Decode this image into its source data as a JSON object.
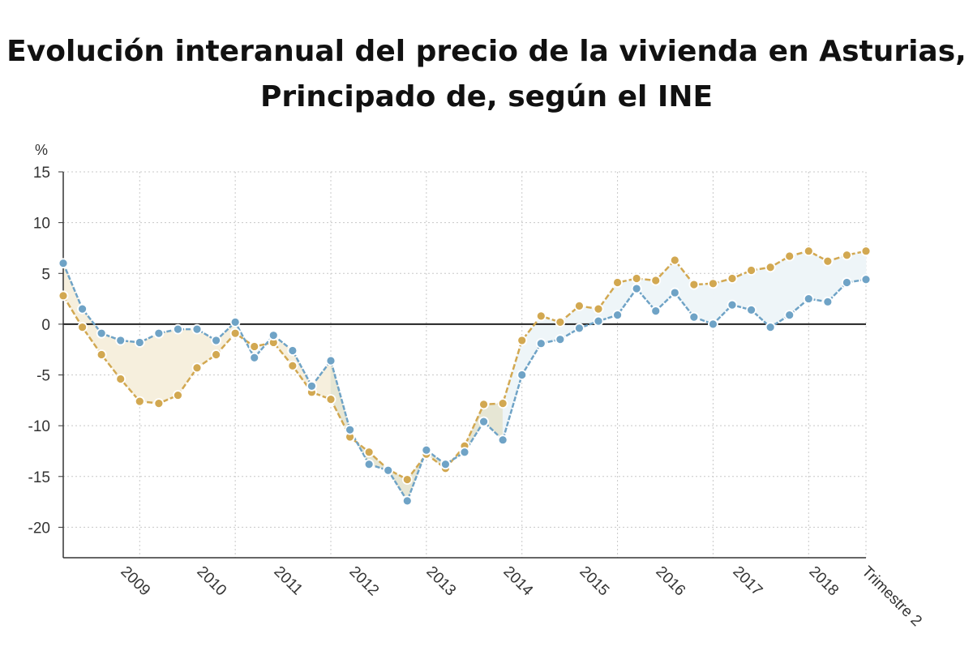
{
  "title": {
    "line1": "Evolución interanual del precio de la vivienda en Asturias,",
    "line2": "Principado de, según el INE"
  },
  "chart_data": {
    "type": "line",
    "y_unit": "%",
    "ylim": [
      -23,
      15
    ],
    "y_ticks": [
      15,
      10,
      5,
      0,
      -5,
      -10,
      -15,
      -20
    ],
    "x_tick_labels": [
      "2009",
      "2010",
      "2011",
      "2012",
      "2013",
      "2014",
      "2015",
      "2016",
      "2017",
      "2018",
      "Trimestre 2"
    ],
    "grid": true,
    "colors": {
      "blue": "#6fa3c6",
      "gold": "#d2a851"
    },
    "series": [
      {
        "key": "blue",
        "values": [
          6.0,
          1.5,
          -0.9,
          -1.6,
          -1.8,
          -0.9,
          -0.5,
          -0.5,
          -1.6,
          0.2,
          -3.3,
          -1.1,
          -2.6,
          -6.1,
          -3.6,
          -10.4,
          -13.8,
          -14.4,
          -17.4,
          -12.4,
          -13.8,
          -12.6,
          -9.6,
          -11.4,
          -5.0,
          -1.9,
          -1.5,
          -0.4,
          0.3,
          0.9,
          3.5,
          1.3,
          3.1,
          0.7,
          0.0,
          1.9,
          1.4,
          -0.3,
          0.9,
          2.5,
          2.2,
          4.1,
          4.4
        ]
      },
      {
        "key": "gold",
        "values": [
          2.8,
          -0.3,
          -3.0,
          -5.4,
          -7.6,
          -7.8,
          -7.0,
          -4.3,
          -3.0,
          -0.9,
          -2.2,
          -1.8,
          -4.1,
          -6.7,
          -7.4,
          -11.1,
          -12.6,
          -14.3,
          -15.3,
          -12.8,
          -14.2,
          -12.0,
          -7.9,
          -7.8,
          -1.6,
          0.8,
          0.2,
          1.8,
          1.5,
          4.1,
          4.5,
          4.3,
          6.3,
          3.9,
          4.0,
          4.5,
          5.3,
          5.6,
          6.7,
          7.2,
          6.2,
          6.8,
          7.2
        ]
      }
    ]
  }
}
